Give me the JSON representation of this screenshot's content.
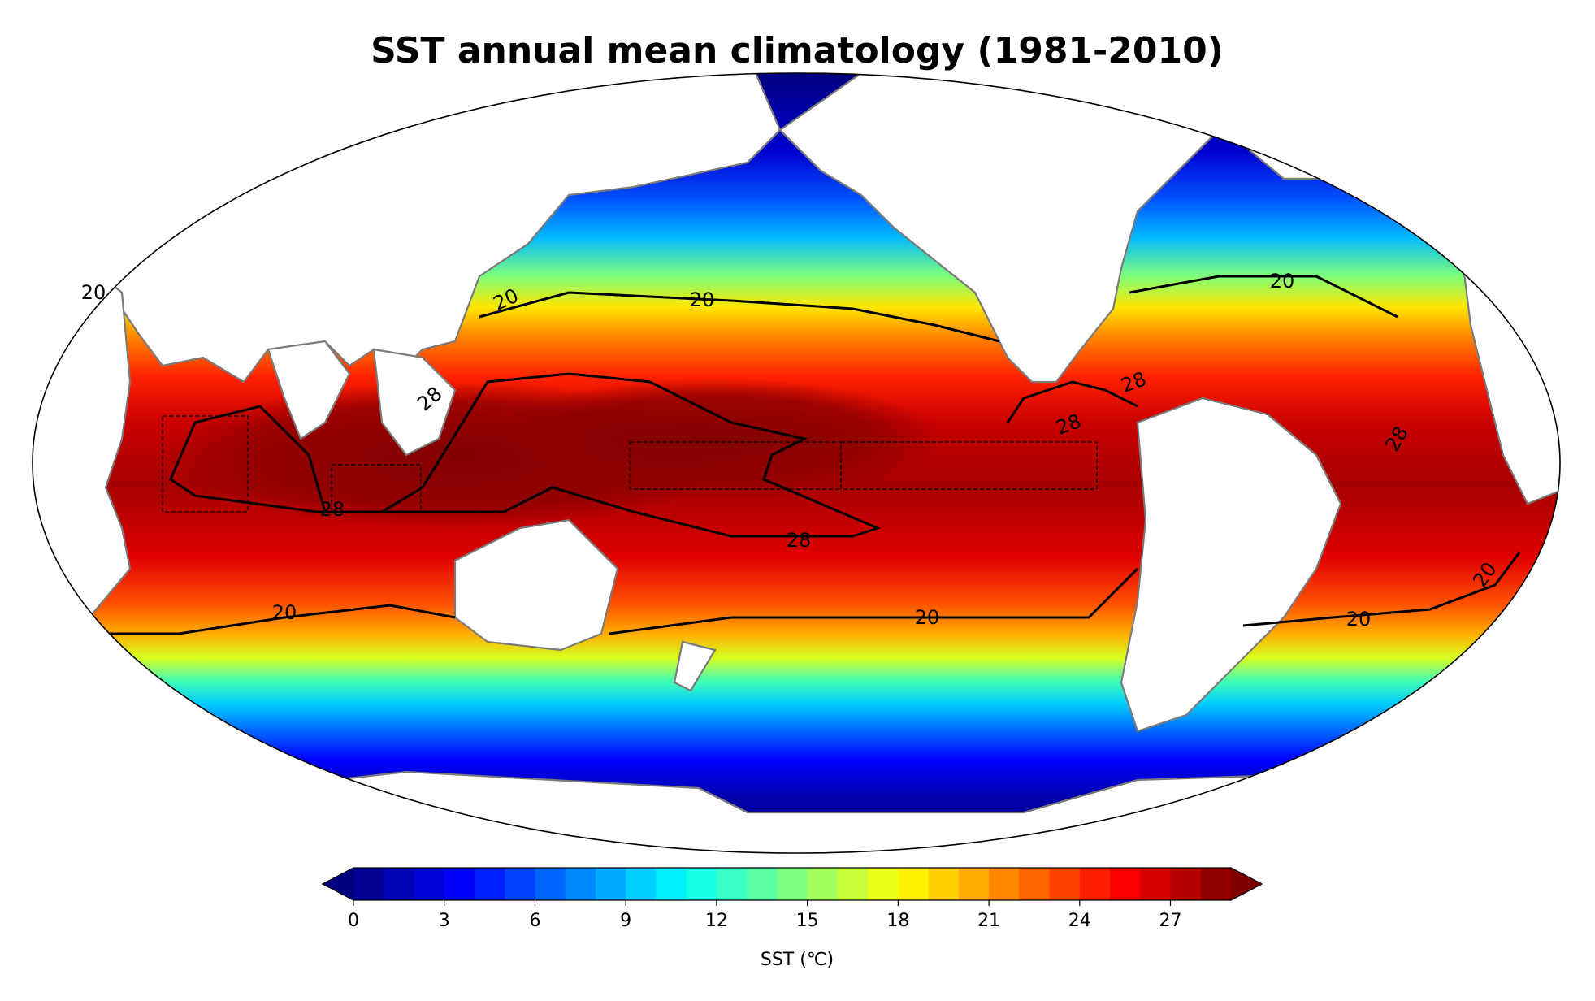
{
  "title": "SST annual mean climatology (1981-2010)",
  "map": {
    "projection": "Robinson",
    "central_longitude": "180",
    "field": "SST annual mean",
    "contour_levels": [
      20,
      28
    ],
    "contour_labels": [
      {
        "text": "20"
      },
      {
        "text": "20"
      },
      {
        "text": "20"
      },
      {
        "text": "20"
      },
      {
        "text": "20"
      },
      {
        "text": "20"
      },
      {
        "text": "20"
      },
      {
        "text": "20"
      },
      {
        "text": "28"
      },
      {
        "text": "28"
      },
      {
        "text": "28"
      },
      {
        "text": "28"
      },
      {
        "text": "28"
      },
      {
        "text": "28"
      }
    ],
    "highlight_boxes": [
      "western Indian Ocean",
      "eastern Indian Ocean",
      "central Pacific",
      "eastern Pacific"
    ]
  },
  "colorbar": {
    "label": "SST (℃)",
    "ticks": [
      "0",
      "3",
      "6",
      "9",
      "12",
      "15",
      "18",
      "21",
      "24",
      "27"
    ],
    "vmin": 0,
    "vmax": 29,
    "step": 1,
    "extend": "both",
    "colormap": "jet",
    "colors": {
      "under": "#00007f",
      "over": "#7f0000"
    }
  }
}
